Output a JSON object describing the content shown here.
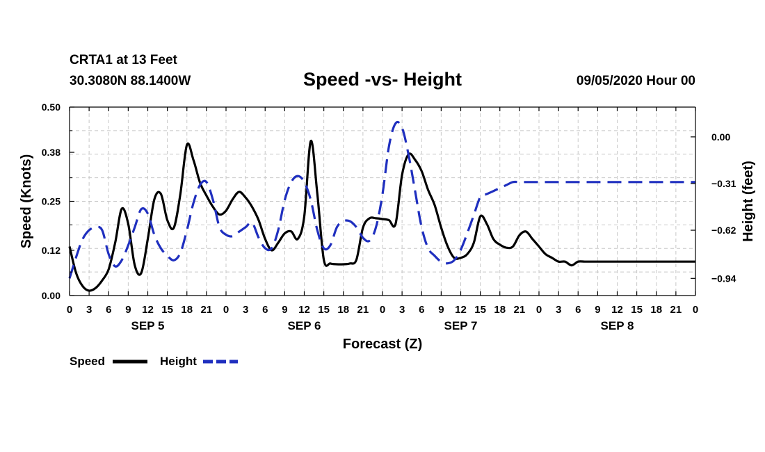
{
  "header": {
    "station": "CRTA1 at 13 Feet",
    "coords": "30.3080N 88.1400W",
    "title": "Speed -vs- Height",
    "datetime": "09/05/2020 Hour 00"
  },
  "chart_data": {
    "type": "line",
    "title": "Speed -vs- Height",
    "xlabel": "Forecast (Z)",
    "ylabel_left": "Speed (Knots)",
    "ylabel_right": "Height (feet)",
    "x_unit": "forecast hour from 09/05/2020 00Z",
    "xlim": [
      0,
      96
    ],
    "ylim_left": [
      0,
      0.5
    ],
    "ylim_right": [
      -1.054,
      0.198
    ],
    "x_ticks": [
      0,
      3,
      6,
      9,
      12,
      15,
      18,
      21,
      24,
      27,
      30,
      33,
      36,
      39,
      42,
      45,
      48,
      51,
      54,
      57,
      60,
      63,
      66,
      69,
      72,
      75,
      78,
      81,
      84,
      87,
      90,
      93,
      96
    ],
    "x_tick_labels": [
      "0",
      "3",
      "6",
      "9",
      "12",
      "15",
      "18",
      "21",
      "0",
      "3",
      "6",
      "9",
      "12",
      "15",
      "18",
      "21",
      "0",
      "3",
      "6",
      "9",
      "12",
      "15",
      "18",
      "21",
      "0",
      "3",
      "6",
      "9",
      "12",
      "15",
      "18",
      "21",
      "0"
    ],
    "day_labels": [
      {
        "label": "SEP 5",
        "x": 12
      },
      {
        "label": "SEP 6",
        "x": 36
      },
      {
        "label": "SEP 7",
        "x": 60
      },
      {
        "label": "SEP 8",
        "x": 84
      }
    ],
    "y_ticks_left": [
      0.0,
      0.12,
      0.25,
      0.38,
      0.5
    ],
    "y_tick_labels_left": [
      "0.00",
      "0.12",
      "0.25",
      "0.38",
      "0.50"
    ],
    "y_ticks_right": [
      -0.94,
      -0.62,
      -0.31,
      0.0
    ],
    "y_tick_labels_right": [
      "−0.94",
      "−0.62",
      "−0.31",
      "0.00"
    ],
    "grid": true,
    "legend_position": "bottom-left",
    "series": [
      {
        "name": "Speed",
        "axis": "left",
        "color": "#000000",
        "style": "solid",
        "x": [
          0,
          1,
          2,
          3,
          4,
          5,
          6,
          7,
          8,
          9,
          10,
          11,
          12,
          13,
          14,
          15,
          16,
          17,
          18,
          19,
          20,
          21,
          22,
          23,
          24,
          25,
          26,
          27,
          28,
          29,
          30,
          31,
          32,
          33,
          34,
          35,
          36,
          37,
          38,
          39,
          40,
          41,
          42,
          43,
          44,
          45,
          46,
          47,
          48,
          49,
          50,
          51,
          52,
          53,
          54,
          55,
          56,
          57,
          58,
          59,
          60,
          61,
          62,
          63,
          64,
          65,
          66,
          67,
          68,
          69,
          70,
          71,
          72,
          73,
          74,
          75,
          76,
          77,
          78,
          79,
          80,
          81,
          82,
          83,
          84,
          85,
          86,
          87,
          88,
          89,
          90,
          91,
          92,
          93,
          94,
          95,
          96
        ],
        "y": [
          0.13,
          0.06,
          0.025,
          0.013,
          0.02,
          0.04,
          0.07,
          0.14,
          0.23,
          0.19,
          0.08,
          0.06,
          0.15,
          0.255,
          0.27,
          0.2,
          0.18,
          0.27,
          0.4,
          0.36,
          0.3,
          0.265,
          0.235,
          0.215,
          0.225,
          0.255,
          0.275,
          0.26,
          0.235,
          0.2,
          0.15,
          0.12,
          0.14,
          0.165,
          0.17,
          0.15,
          0.21,
          0.41,
          0.27,
          0.095,
          0.085,
          0.083,
          0.083,
          0.085,
          0.095,
          0.18,
          0.205,
          0.205,
          0.203,
          0.2,
          0.19,
          0.32,
          0.375,
          0.36,
          0.33,
          0.28,
          0.24,
          0.18,
          0.13,
          0.1,
          0.1,
          0.11,
          0.14,
          0.21,
          0.19,
          0.15,
          0.135,
          0.127,
          0.13,
          0.16,
          0.17,
          0.15,
          0.13,
          0.11,
          0.1,
          0.09,
          0.09,
          0.08,
          0.09,
          0.09,
          0.09,
          0.09,
          0.09,
          0.09,
          0.09,
          0.09,
          0.09,
          0.09,
          0.09,
          0.09,
          0.09,
          0.09,
          0.09,
          0.09,
          0.09,
          0.09,
          0.09
        ]
      },
      {
        "name": "Height",
        "axis": "right",
        "color": "#1f2fbf",
        "style": "dashed",
        "x": [
          0,
          1,
          2,
          3,
          4,
          5,
          6,
          7,
          8,
          9,
          10,
          11,
          12,
          13,
          14,
          15,
          16,
          17,
          18,
          19,
          20,
          21,
          22,
          23,
          24,
          25,
          26,
          27,
          28,
          29,
          30,
          31,
          32,
          33,
          34,
          35,
          36,
          37,
          38,
          39,
          40,
          41,
          42,
          43,
          44,
          45,
          46,
          47,
          48,
          49,
          50,
          51,
          52,
          53,
          54,
          55,
          56,
          57,
          58,
          59,
          60,
          61,
          62,
          63,
          64,
          65,
          66,
          67,
          68,
          69,
          70,
          71,
          72,
          73,
          74,
          75,
          76,
          77,
          78,
          79,
          80,
          81,
          82,
          83,
          84,
          85,
          86,
          87,
          88,
          89,
          90,
          91,
          92,
          93,
          94,
          95,
          96
        ],
        "y": [
          -0.94,
          -0.8,
          -0.68,
          -0.62,
          -0.6,
          -0.62,
          -0.78,
          -0.86,
          -0.82,
          -0.72,
          -0.6,
          -0.48,
          -0.51,
          -0.65,
          -0.74,
          -0.79,
          -0.82,
          -0.77,
          -0.62,
          -0.44,
          -0.32,
          -0.3,
          -0.42,
          -0.6,
          -0.65,
          -0.66,
          -0.63,
          -0.6,
          -0.57,
          -0.67,
          -0.74,
          -0.74,
          -0.62,
          -0.42,
          -0.3,
          -0.26,
          -0.3,
          -0.42,
          -0.62,
          -0.74,
          -0.72,
          -0.6,
          -0.56,
          -0.56,
          -0.6,
          -0.67,
          -0.69,
          -0.6,
          -0.38,
          -0.06,
          0.09,
          0.06,
          -0.12,
          -0.36,
          -0.6,
          -0.74,
          -0.79,
          -0.83,
          -0.84,
          -0.82,
          -0.75,
          -0.64,
          -0.52,
          -0.4,
          -0.38,
          -0.36,
          -0.34,
          -0.32,
          -0.3,
          -0.3,
          -0.3,
          -0.3,
          -0.3,
          -0.3,
          -0.3,
          -0.3,
          -0.3,
          -0.3,
          -0.3,
          -0.3,
          -0.3,
          -0.3,
          -0.3,
          -0.3,
          -0.3,
          -0.3,
          -0.3,
          -0.3,
          -0.3,
          -0.3,
          -0.3,
          -0.3,
          -0.3,
          -0.3,
          -0.3,
          -0.3,
          -0.3
        ]
      }
    ]
  },
  "legend": {
    "speed_label": "Speed",
    "height_label": "Height"
  }
}
